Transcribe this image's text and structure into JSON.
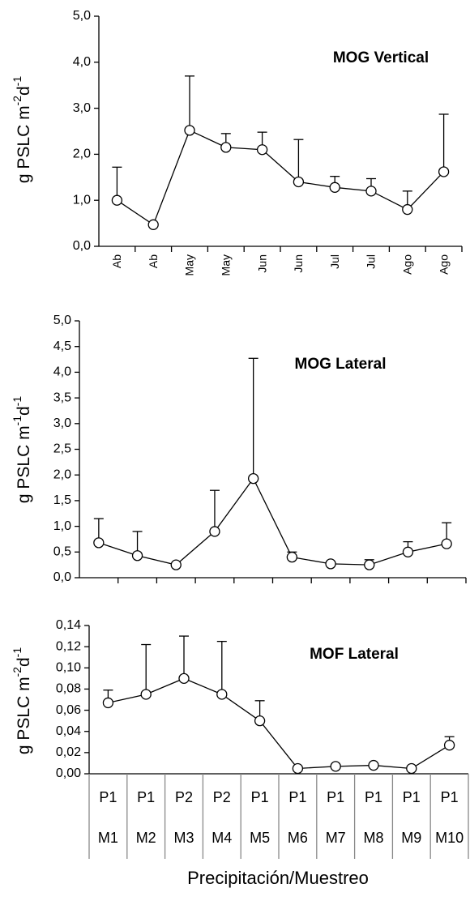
{
  "chart_data": [
    {
      "type": "line",
      "title": "MOG Vertical",
      "ylabel": [
        "g PSLC m",
        "-2",
        "d",
        "-1"
      ],
      "categories": [
        "Ab",
        "Ab",
        "May",
        "May",
        "Jun",
        "Jun",
        "Jul",
        "Jul",
        "Ago",
        "Ago"
      ],
      "values": [
        1.0,
        0.47,
        2.52,
        2.15,
        2.1,
        1.4,
        1.28,
        1.2,
        0.8,
        1.62
      ],
      "errors": [
        0.72,
        null,
        1.18,
        0.3,
        0.38,
        0.92,
        0.24,
        0.27,
        0.4,
        1.25
      ],
      "ylim": [
        0,
        5
      ],
      "yticks": [
        {
          "value": 0,
          "label": "0,0"
        },
        {
          "value": 1,
          "label": "1,0"
        },
        {
          "value": 2,
          "label": "2,0"
        },
        {
          "value": 3,
          "label": "3,0"
        },
        {
          "value": 4,
          "label": "4,0"
        },
        {
          "value": 5,
          "label": "5,0"
        }
      ],
      "color": "#000000"
    },
    {
      "type": "line",
      "title": "MOG Lateral",
      "ylabel": [
        "g PSLC m",
        "-1",
        "d",
        "-1"
      ],
      "categories": [
        null,
        null,
        null,
        null,
        null,
        null,
        null,
        null,
        null,
        null
      ],
      "values": [
        0.68,
        0.43,
        0.25,
        0.9,
        1.93,
        0.4,
        0.27,
        0.25,
        0.5,
        0.66
      ],
      "errors": [
        0.47,
        0.47,
        null,
        0.8,
        2.34,
        0.1,
        null,
        0.1,
        0.2,
        0.41
      ],
      "ylim": [
        0,
        5
      ],
      "yticks": [
        {
          "value": 0,
          "label": "0,0"
        },
        {
          "value": 0.5,
          "label": "0,5"
        },
        {
          "value": 1,
          "label": "1,0"
        },
        {
          "value": 1.5,
          "label": "1,5"
        },
        {
          "value": 2,
          "label": "2,0"
        },
        {
          "value": 2.5,
          "label": "2,5"
        },
        {
          "value": 3,
          "label": "3,0"
        },
        {
          "value": 3.5,
          "label": "3,5"
        },
        {
          "value": 4,
          "label": "4,0"
        },
        {
          "value": 4.5,
          "label": "4,5"
        },
        {
          "value": 5,
          "label": "5,0"
        }
      ],
      "color": "#000000"
    },
    {
      "type": "line",
      "title": "MOF Lateral",
      "ylabel": [
        "g PSLC m",
        "-2",
        "d",
        "-1"
      ],
      "categories": [
        [
          "P1",
          "M1"
        ],
        [
          "P1",
          "M2"
        ],
        [
          "P2",
          "M3"
        ],
        [
          "P2",
          "M4"
        ],
        [
          "P1",
          "M5"
        ],
        [
          "P1",
          "M6"
        ],
        [
          "P1",
          "M7"
        ],
        [
          "P1",
          "M8"
        ],
        [
          "P1",
          "M9"
        ],
        [
          "P1",
          "M10"
        ]
      ],
      "values": [
        0.067,
        0.075,
        0.09,
        0.075,
        0.05,
        0.005,
        0.007,
        0.008,
        0.005,
        0.027
      ],
      "errors": [
        0.012,
        0.047,
        0.04,
        0.05,
        0.019,
        null,
        null,
        null,
        null,
        0.008
      ],
      "ylim": [
        0,
        0.14
      ],
      "yticks": [
        {
          "value": 0,
          "label": "0,00"
        },
        {
          "value": 0.02,
          "label": "0,02"
        },
        {
          "value": 0.04,
          "label": "0,04"
        },
        {
          "value": 0.06,
          "label": "0,06"
        },
        {
          "value": 0.08,
          "label": "0,08"
        },
        {
          "value": 0.1,
          "label": "0,10"
        },
        {
          "value": 0.12,
          "label": "0,12"
        },
        {
          "value": 0.14,
          "label": "0,14"
        }
      ],
      "xlabel": "Precipitación/Muestreo",
      "color": "#000000"
    }
  ]
}
